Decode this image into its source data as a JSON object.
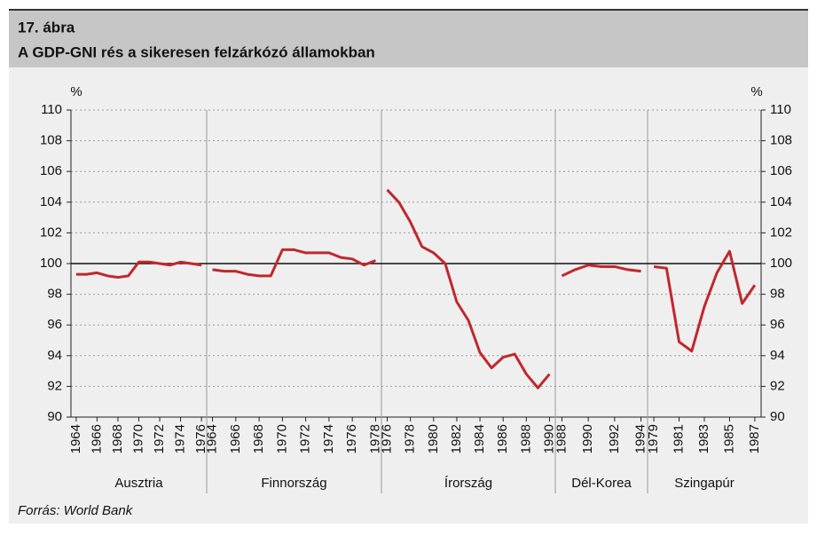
{
  "chart_data": {
    "type": "line",
    "figure_label": "17. ábra",
    "title": "A GDP-GNI rés a sikeresen felzárkózó államokban",
    "source": "Forrás: World Bank",
    "y_unit_left": "%",
    "y_unit_right": "%",
    "color": "#c0282d",
    "ylim": [
      90,
      110
    ],
    "yticks": [
      90,
      92,
      94,
      96,
      98,
      100,
      102,
      104,
      106,
      108,
      110
    ],
    "reference_line": 100,
    "grid": true,
    "groups": [
      {
        "name": "Ausztria",
        "categories": [
          "1964",
          null,
          "1966",
          null,
          "1968",
          null,
          "1970",
          null,
          "1972",
          null,
          "1974",
          null,
          "1976"
        ],
        "values": [
          99.3,
          99.3,
          99.4,
          99.2,
          99.1,
          99.2,
          100.1,
          100.1,
          100.0,
          99.9,
          100.1,
          100.0,
          99.9
        ]
      },
      {
        "name": "Finnország",
        "categories": [
          "1964",
          null,
          "1966",
          null,
          "1968",
          null,
          "1970",
          null,
          "1972",
          null,
          "1974",
          null,
          "1976",
          null,
          "1978"
        ],
        "values": [
          99.6,
          99.5,
          99.5,
          99.3,
          99.2,
          99.2,
          100.9,
          100.9,
          100.7,
          100.7,
          100.7,
          100.4,
          100.3,
          99.9,
          100.2
        ]
      },
      {
        "name": "Írország",
        "categories": [
          "1976",
          null,
          "1978",
          null,
          "1980",
          null,
          "1982",
          null,
          "1984",
          null,
          "1986",
          null,
          "1988",
          null,
          "1990"
        ],
        "values": [
          104.8,
          104.0,
          102.7,
          101.1,
          100.7,
          100.0,
          97.5,
          96.3,
          94.2,
          93.2,
          93.9,
          94.1,
          92.8,
          91.9,
          92.8
        ]
      },
      {
        "name": "Dél-Korea",
        "categories": [
          "1988",
          null,
          "1990",
          null,
          "1992",
          null,
          "1994"
        ],
        "values": [
          99.2,
          99.6,
          99.9,
          99.8,
          99.8,
          99.6,
          99.5
        ]
      },
      {
        "name": "Szingapúr",
        "categories": [
          "1979",
          null,
          "1981",
          null,
          "1983",
          null,
          "1985",
          null,
          "1987"
        ],
        "values": [
          99.8,
          99.7,
          94.9,
          94.3,
          97.2,
          99.4,
          100.8,
          97.4,
          98.6
        ]
      }
    ]
  }
}
